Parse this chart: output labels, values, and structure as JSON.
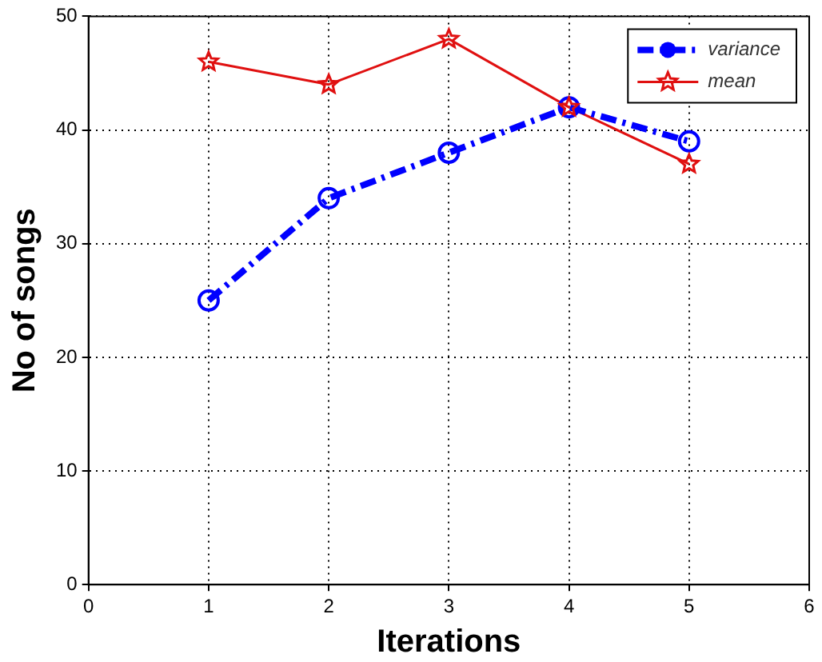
{
  "chart_data": {
    "type": "line",
    "xlabel": "Iterations",
    "ylabel": "No of songs",
    "x": [
      1,
      2,
      3,
      4,
      5
    ],
    "series": [
      {
        "name": "variance",
        "color": "#0000ff",
        "values": [
          25,
          34,
          38,
          42,
          39
        ],
        "marker": "circle",
        "line_style": "dashed"
      },
      {
        "name": "mean",
        "color": "#e01010",
        "values": [
          46,
          44,
          48,
          42,
          37
        ],
        "marker": "star",
        "line_style": "solid"
      }
    ],
    "xlim": [
      0,
      6
    ],
    "xticks": [
      0,
      1,
      2,
      3,
      4,
      5,
      6
    ],
    "ylim": [
      0,
      50
    ],
    "yticks": [
      0,
      10,
      20,
      30,
      40,
      50
    ],
    "grid": true,
    "legend": "top right"
  }
}
